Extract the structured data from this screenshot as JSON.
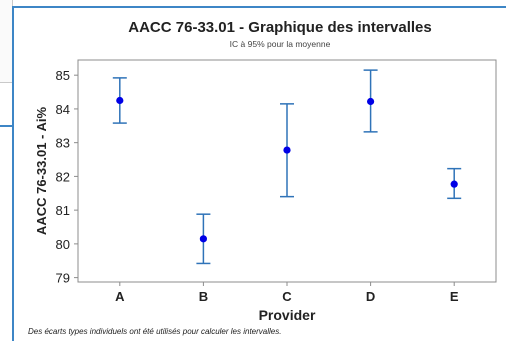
{
  "chart_data": {
    "type": "interval",
    "title": "AACC 76-33.01 - Graphique des intervalles",
    "subtitle": "IC à 95% pour la moyenne",
    "xlabel": "Provider",
    "ylabel": "AACC 76-33.01 - Ai%",
    "categories": [
      "A",
      "B",
      "C",
      "D",
      "E"
    ],
    "means": [
      84.25,
      80.15,
      82.78,
      84.22,
      81.77
    ],
    "lower": [
      83.58,
      79.42,
      81.4,
      83.32,
      81.35
    ],
    "upper": [
      84.92,
      80.88,
      84.15,
      85.15,
      82.23
    ],
    "ylim": [
      78.87,
      85.45
    ],
    "yticks": [
      "79",
      "80",
      "81",
      "82",
      "83",
      "84",
      "85"
    ],
    "grid": false,
    "colors": {
      "mean": "#0000e6",
      "interval": "#2f73b8",
      "axis": "#8c8c8c"
    }
  },
  "footnote": "Des écarts types individuels ont été utilisés pour calculer les intervalles."
}
